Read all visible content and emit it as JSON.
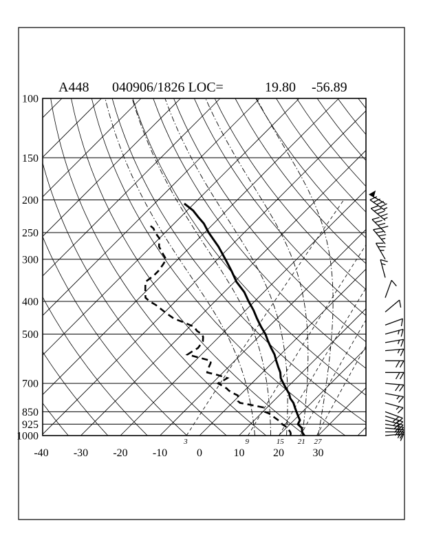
{
  "page": {
    "title_parts": {
      "station": "A448",
      "datetime_loc": "040906/1826 LOC=",
      "lat": "19.80",
      "lon": "-56.89"
    }
  },
  "chart_data": {
    "type": "skewt-log-p",
    "title": "A448  040906/1826 LOC=  19.80  -56.89",
    "station": "A448",
    "datetime": "040906/1826",
    "latitude": 19.8,
    "longitude": -56.89,
    "units": {
      "pressure": "hPa",
      "temperature": "C",
      "wind_speed": "kt"
    },
    "pressure_axis": {
      "scale": "log",
      "range": [
        100,
        1000
      ],
      "ticks": [
        100,
        150,
        200,
        250,
        300,
        400,
        500,
        700,
        850,
        925,
        1000
      ]
    },
    "temperature_axis": {
      "ticks": [
        -40,
        -30,
        -20,
        -10,
        0,
        10,
        20,
        30
      ],
      "skew_deg": 45,
      "isotherm_step_C": 10
    },
    "dry_adiabat_step_K": 10,
    "moist_adiabats_start_C": [
      14,
      18,
      22,
      26,
      30
    ],
    "mixing_ratio_lines_gkg": [
      3,
      9,
      15,
      21,
      27
    ],
    "temperature_profile": {
      "columns": [
        "pressure_hPa",
        "temp_C"
      ],
      "points": [
        [
          1000,
          26.5
        ],
        [
          975,
          25
        ],
        [
          950,
          24
        ],
        [
          925,
          22
        ],
        [
          900,
          21.5
        ],
        [
          875,
          20
        ],
        [
          850,
          18.5
        ],
        [
          825,
          17
        ],
        [
          800,
          15.5
        ],
        [
          775,
          13.5
        ],
        [
          750,
          12
        ],
        [
          725,
          10
        ],
        [
          700,
          8
        ],
        [
          675,
          6
        ],
        [
          650,
          4.5
        ],
        [
          625,
          2.5
        ],
        [
          600,
          0.5
        ],
        [
          575,
          -1.5
        ],
        [
          550,
          -4
        ],
        [
          525,
          -6.5
        ],
        [
          500,
          -9
        ],
        [
          475,
          -12
        ],
        [
          450,
          -15
        ],
        [
          425,
          -18
        ],
        [
          400,
          -21.5
        ],
        [
          375,
          -25
        ],
        [
          350,
          -29.5
        ],
        [
          325,
          -33.5
        ],
        [
          300,
          -38
        ],
        [
          275,
          -43
        ],
        [
          250,
          -49
        ],
        [
          235,
          -52.5
        ],
        [
          225,
          -55.5
        ],
        [
          215,
          -58.5
        ],
        [
          205,
          -62.5
        ]
      ]
    },
    "dewpoint_profile": {
      "columns": [
        "pressure_hPa",
        "dewpoint_C"
      ],
      "points": [
        [
          1000,
          23
        ],
        [
          985,
          22.5
        ],
        [
          975,
          22
        ],
        [
          960,
          21
        ],
        [
          950,
          20.5
        ],
        [
          935,
          19
        ],
        [
          925,
          18
        ],
        [
          910,
          17
        ],
        [
          900,
          16
        ],
        [
          885,
          14.5
        ],
        [
          875,
          13.5
        ],
        [
          860,
          12
        ],
        [
          850,
          10.5
        ],
        [
          840,
          9.8
        ],
        [
          825,
          9
        ],
        [
          810,
          5
        ],
        [
          800,
          2
        ],
        [
          790,
          1
        ],
        [
          775,
          0.5
        ],
        [
          760,
          -0.5
        ],
        [
          750,
          -2
        ],
        [
          735,
          -4
        ],
        [
          725,
          -5
        ],
        [
          710,
          -7
        ],
        [
          700,
          -8.5
        ],
        [
          690,
          -8
        ],
        [
          675,
          -7.5
        ],
        [
          660,
          -11
        ],
        [
          650,
          -14
        ],
        [
          640,
          -14.5
        ],
        [
          625,
          -15
        ],
        [
          610,
          -15.5
        ],
        [
          600,
          -16
        ],
        [
          590,
          -19
        ],
        [
          575,
          -23.5
        ],
        [
          560,
          -23
        ],
        [
          550,
          -22.5
        ],
        [
          535,
          -22.8
        ],
        [
          525,
          -23
        ],
        [
          510,
          -24
        ],
        [
          500,
          -25
        ],
        [
          490,
          -27
        ],
        [
          475,
          -29
        ],
        [
          460,
          -33
        ],
        [
          450,
          -36
        ],
        [
          435,
          -39
        ],
        [
          425,
          -41
        ],
        [
          410,
          -44
        ],
        [
          400,
          -46.5
        ],
        [
          390,
          -48.5
        ],
        [
          375,
          -50
        ],
        [
          360,
          -51.5
        ],
        [
          350,
          -52.5
        ],
        [
          335,
          -52
        ],
        [
          325,
          -52
        ],
        [
          310,
          -52.5
        ],
        [
          300,
          -53
        ],
        [
          290,
          -55
        ],
        [
          275,
          -58
        ],
        [
          260,
          -60
        ],
        [
          250,
          -62.5
        ],
        [
          243,
          -64
        ],
        [
          237,
          -66
        ]
      ]
    },
    "wind_profile": {
      "columns": [
        "pressure_hPa",
        "dir_from_deg",
        "speed_kt"
      ],
      "points": [
        [
          205,
          300,
          50
        ],
        [
          215,
          305,
          45
        ],
        [
          230,
          310,
          45
        ],
        [
          250,
          315,
          40
        ],
        [
          270,
          320,
          35
        ],
        [
          300,
          330,
          25
        ],
        [
          340,
          345,
          15
        ],
        [
          390,
          20,
          10
        ],
        [
          430,
          50,
          10
        ],
        [
          470,
          70,
          10
        ],
        [
          500,
          75,
          15
        ],
        [
          530,
          80,
          15
        ],
        [
          560,
          85,
          15
        ],
        [
          600,
          90,
          20
        ],
        [
          650,
          90,
          20
        ],
        [
          700,
          95,
          20
        ],
        [
          750,
          100,
          15
        ],
        [
          800,
          105,
          15
        ],
        [
          850,
          110,
          20
        ],
        [
          875,
          108,
          20
        ],
        [
          900,
          105,
          20
        ],
        [
          925,
          100,
          20
        ],
        [
          950,
          95,
          20
        ],
        [
          975,
          90,
          15
        ],
        [
          1000,
          85,
          15
        ]
      ]
    }
  }
}
